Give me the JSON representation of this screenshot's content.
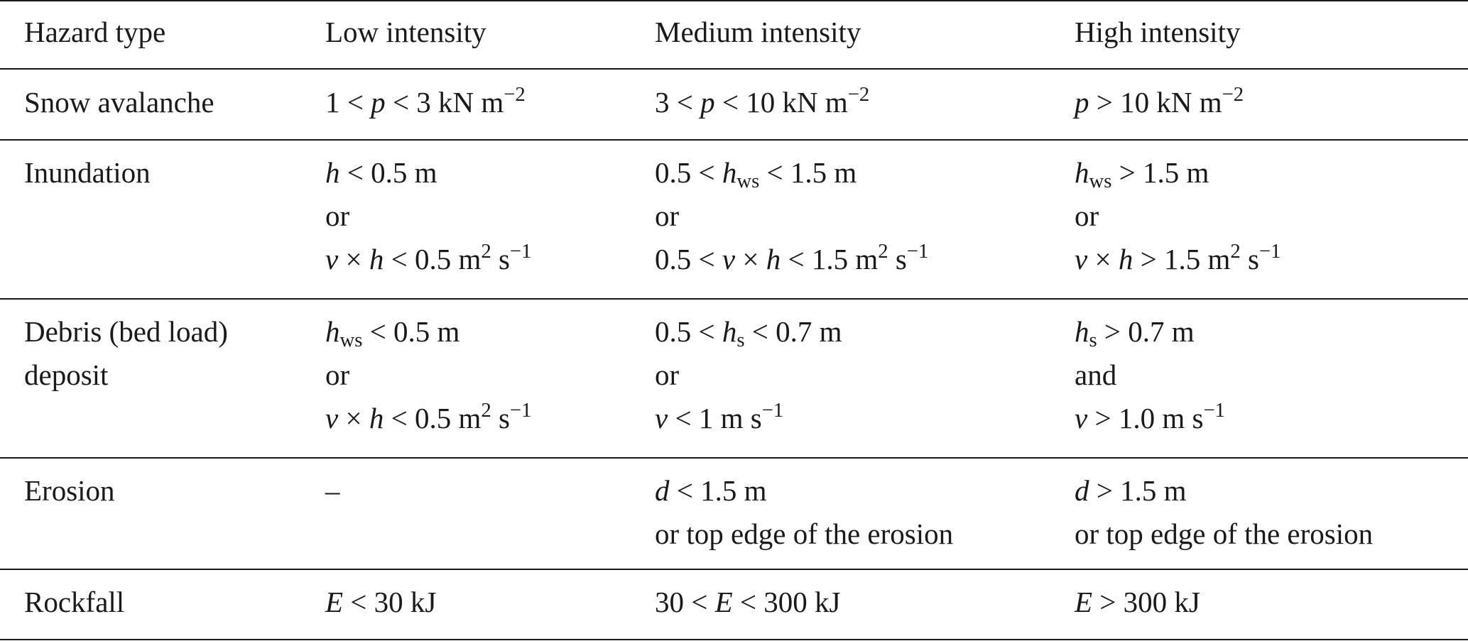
{
  "headers": [
    "Hazard type",
    "Low intensity",
    "Medium intensity",
    "High intensity"
  ],
  "rows": [
    {
      "hazard": [
        "Snow avalanche"
      ],
      "low": [
        "1 < <i>p</i> < 3 kN m<sup>−2</sup>"
      ],
      "medium": [
        "3 < <i>p</i> < 10 kN m<sup>−2</sup>"
      ],
      "high": [
        "<i>p</i> > 10 kN m<sup>−2</sup>"
      ]
    },
    {
      "hazard": [
        "Inundation"
      ],
      "low": [
        "<i>h</i> < 0.5 m",
        "or",
        "<i>v</i> × <i>h</i> < 0.5 m<sup>2</sup> s<sup>−1</sup>"
      ],
      "medium": [
        "0.5 < <i>h</i><sub>ws</sub> < 1.5 m",
        "or",
        "0.5 < <i>v</i> × <i>h</i> < 1.5 m<sup>2</sup> s<sup>−1</sup>"
      ],
      "high": [
        "<i>h</i><sub>ws</sub> > 1.5 m",
        "or",
        "<i>v</i> × <i>h</i> > 1.5 m<sup>2</sup> s<sup>−1</sup>"
      ]
    },
    {
      "hazard": [
        "Debris (bed load)",
        "deposit"
      ],
      "low": [
        "<i>h</i><sub>ws</sub> < 0.5 m",
        "or",
        "<i>v</i> × <i>h</i> < 0.5 m<sup>2</sup> s<sup>−1</sup>"
      ],
      "medium": [
        "0.5 < <i>h</i><sub>s</sub> < 0.7 m",
        "or",
        "<i>v</i> < 1 m s<sup>−1</sup>"
      ],
      "high": [
        "<i>h</i><sub>s</sub> > 0.7 m",
        "and",
        "<i>v</i> > 1.0 m s<sup>−1</sup>"
      ]
    },
    {
      "hazard": [
        "Erosion"
      ],
      "low": [
        "–"
      ],
      "medium": [
        "<i>d</i> < 1.5 m",
        "or top edge of the erosion"
      ],
      "high": [
        "<i>d</i> > 1.5 m",
        "or top edge of the erosion"
      ]
    },
    {
      "hazard": [
        "Rockfall"
      ],
      "low": [
        "<i>E</i> < 30 kJ"
      ],
      "medium": [
        "30 < <i>E</i> < 300 kJ"
      ],
      "high": [
        "<i>E</i> > 300 kJ"
      ]
    }
  ]
}
